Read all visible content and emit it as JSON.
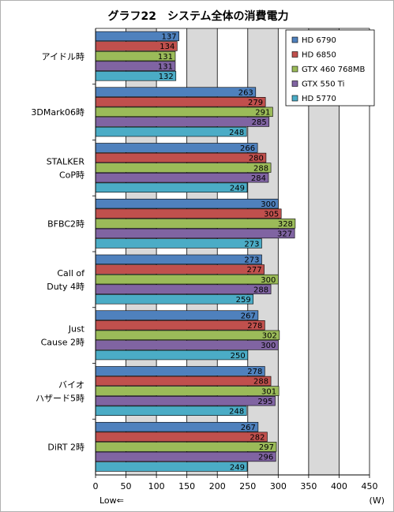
{
  "chart_data": {
    "type": "bar",
    "orientation": "horizontal",
    "title": "グラフ22　システム全体の消費電力",
    "unit_label": "(W)",
    "low_label": "Low⇐",
    "categories": [
      [
        "アイドル時"
      ],
      [
        "3DMark06時"
      ],
      [
        "STALKER",
        "CoP時"
      ],
      [
        "BFBC2時"
      ],
      [
        "Call of",
        "Duty 4時"
      ],
      [
        "Just",
        "Cause 2時"
      ],
      [
        "バイオ",
        "ハザード5時"
      ],
      [
        "DiRT 2時"
      ]
    ],
    "series": [
      {
        "name": "HD 6790",
        "color": "#4f81bd",
        "values": [
          137,
          263,
          266,
          300,
          273,
          267,
          278,
          267
        ]
      },
      {
        "name": "HD 6850",
        "color": "#c0504d",
        "values": [
          134,
          279,
          280,
          305,
          277,
          278,
          288,
          282
        ]
      },
      {
        "name": "GTX 460 768MB",
        "color": "#9bbb59",
        "values": [
          131,
          291,
          288,
          328,
          300,
          302,
          301,
          297
        ]
      },
      {
        "name": "GTX 550 Ti",
        "color": "#8064a2",
        "values": [
          131,
          285,
          284,
          327,
          288,
          300,
          295,
          296
        ]
      },
      {
        "name": "HD 5770",
        "color": "#4bacc6",
        "values": [
          132,
          248,
          249,
          273,
          259,
          250,
          248,
          249
        ]
      }
    ],
    "xlim": [
      0,
      450
    ],
    "xticks": [
      0,
      50,
      100,
      150,
      200,
      250,
      300,
      350,
      400,
      450
    ],
    "grid": true,
    "legend_position": "top-right"
  }
}
